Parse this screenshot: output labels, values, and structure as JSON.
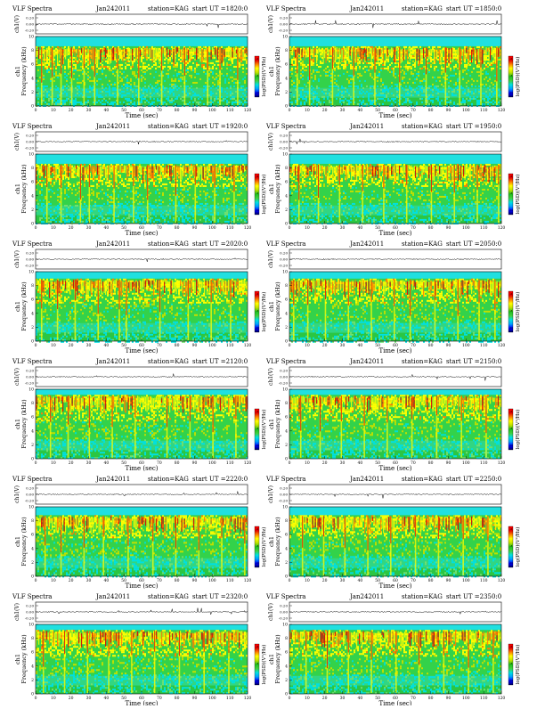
{
  "page": {
    "background": "#ffffff"
  },
  "colorbar": {
    "colors": [
      "#000060",
      "#0000ff",
      "#00a0ff",
      "#00e0e0",
      "#40d040",
      "#20c020",
      "#c0e000",
      "#ffff00",
      "#ff8000",
      "#e00000",
      "#ff0000"
    ]
  },
  "chart_data": [
    {
      "type": "heatmap",
      "title": "VLF Spectra",
      "date": "Jan242011",
      "station": "station=KAG",
      "start": "start  UT =1820:0",
      "amp_label": "ch1(V)",
      "amp_ticks": [
        "0.20",
        "0.00",
        "-0.20"
      ],
      "ylabel": "ch1\nFrequency (kHz)",
      "xlabel": "Time (sec)",
      "xlim": [
        0,
        120
      ],
      "ylim": [
        0,
        10
      ],
      "x_ticks": [
        "0",
        "10",
        "20",
        "30",
        "40",
        "50",
        "60",
        "70",
        "80",
        "90",
        "100",
        "110",
        "120"
      ],
      "y_ticks": [
        "0",
        "2",
        "4",
        "6",
        "8",
        "10"
      ],
      "colorbar_label": "log(PSD)(V²/Hz)",
      "colorbar_ticks": [
        "-6",
        "-8",
        "-10"
      ],
      "upper_band_khz": 8.6,
      "burst_seconds": [
        3,
        9,
        14,
        20,
        27,
        33,
        46,
        58,
        71,
        84,
        97,
        104,
        114
      ]
    },
    {
      "type": "heatmap",
      "title": "VLF Spectra",
      "date": "Jan242011",
      "station": "station=KAG",
      "start": "start  UT =1850:0",
      "amp_label": "ch1(V)",
      "amp_ticks": [
        "0.20",
        "0.00",
        "-0.20"
      ],
      "ylabel": "ch1\nFrequency (kHz)",
      "xlabel": "Time (sec)",
      "xlim": [
        0,
        120
      ],
      "ylim": [
        0,
        10
      ],
      "x_ticks": [
        "0",
        "10",
        "20",
        "30",
        "40",
        "50",
        "60",
        "70",
        "80",
        "90",
        "100",
        "110",
        "120"
      ],
      "y_ticks": [
        "0",
        "2",
        "4",
        "6",
        "8",
        "10"
      ],
      "colorbar_label": "log(PSD)(V²/Hz)",
      "colorbar_ticks": [
        "-6",
        "-8",
        "-10"
      ],
      "upper_band_khz": 8.6,
      "burst_seconds": [
        4,
        11,
        24,
        36,
        48,
        62,
        77,
        88,
        96,
        108,
        117
      ]
    },
    {
      "type": "heatmap",
      "title": "VLF Spectra",
      "date": "Jan242011",
      "station": "station=KAG",
      "start": "start  UT =1920:0",
      "amp_label": "ch1(V)",
      "amp_ticks": [
        "0.20",
        "0.00",
        "-0.20"
      ],
      "ylabel": "ch1\nFrequency (kHz)",
      "xlabel": "Time (sec)",
      "xlim": [
        0,
        120
      ],
      "ylim": [
        0,
        10
      ],
      "x_ticks": [
        "0",
        "10",
        "20",
        "30",
        "40",
        "50",
        "60",
        "70",
        "80",
        "90",
        "100",
        "110",
        "120"
      ],
      "y_ticks": [
        "0",
        "2",
        "4",
        "6",
        "8",
        "10"
      ],
      "colorbar_label": "log(PSD)(V²/Hz)",
      "colorbar_ticks": [
        "-6",
        "-8",
        "-10"
      ],
      "upper_band_khz": 8.6,
      "burst_seconds": [
        6,
        14,
        25,
        30,
        44,
        55,
        63,
        79,
        90,
        101,
        112
      ]
    },
    {
      "type": "heatmap",
      "title": "VLF Spectra",
      "date": "Jan242011",
      "station": "station=KAG",
      "start": "start  UT =1950:0",
      "amp_label": "ch1(V)",
      "amp_ticks": [
        "0.20",
        "0.00",
        "-0.20"
      ],
      "ylabel": "ch1\nFrequency (kHz)",
      "xlabel": "Time (sec)",
      "xlim": [
        0,
        120
      ],
      "ylim": [
        0,
        10
      ],
      "x_ticks": [
        "0",
        "10",
        "20",
        "30",
        "40",
        "50",
        "60",
        "70",
        "80",
        "90",
        "100",
        "110",
        "120"
      ],
      "y_ticks": [
        "0",
        "2",
        "4",
        "6",
        "8",
        "10"
      ],
      "colorbar_label": "log(PSD)(V²/Hz)",
      "colorbar_ticks": [
        "-6",
        "-8",
        "-10"
      ],
      "upper_band_khz": 8.6,
      "burst_seconds": [
        5,
        16,
        28,
        41,
        53,
        66,
        80,
        93,
        106,
        118
      ]
    },
    {
      "type": "heatmap",
      "title": "VLF Spectra",
      "date": "Jan242011",
      "station": "station=KAG",
      "start": "start  UT =2020:0",
      "amp_label": "ch1(V)",
      "amp_ticks": [
        "0.20",
        "0.00",
        "-0.20"
      ],
      "ylabel": "ch1\nFrequency (kHz)",
      "xlabel": "Time (sec)",
      "xlim": [
        0,
        120
      ],
      "ylim": [
        0,
        10
      ],
      "x_ticks": [
        "0",
        "10",
        "20",
        "30",
        "40",
        "50",
        "60",
        "70",
        "80",
        "90",
        "100",
        "110",
        "120"
      ],
      "y_ticks": [
        "0",
        "2",
        "4",
        "6",
        "8",
        "10"
      ],
      "colorbar_label": "log(PSD)(V²/Hz)",
      "colorbar_ticks": [
        "-6",
        "-8",
        "-10"
      ],
      "upper_band_khz": 9.0,
      "burst_seconds": [
        3,
        12,
        22,
        35,
        47,
        51,
        70,
        86,
        99,
        110
      ]
    },
    {
      "type": "heatmap",
      "title": "VLF Spectra",
      "date": "Jan242011",
      "station": "station=KAG",
      "start": "start  UT =2050:0",
      "amp_label": "ch1(V)",
      "amp_ticks": [
        "0.20",
        "0.00",
        "-0.20"
      ],
      "ylabel": "ch1\nFrequency (kHz)",
      "xlabel": "Time (sec)",
      "xlim": [
        0,
        120
      ],
      "ylim": [
        0,
        10
      ],
      "x_ticks": [
        "0",
        "10",
        "20",
        "30",
        "40",
        "50",
        "60",
        "70",
        "80",
        "90",
        "100",
        "110",
        "120"
      ],
      "y_ticks": [
        "0",
        "2",
        "4",
        "6",
        "8",
        "10"
      ],
      "colorbar_label": "log(PSD)(V²/Hz)",
      "colorbar_ticks": [
        "-6",
        "-8",
        "-10"
      ],
      "upper_band_khz": 9.0,
      "burst_seconds": [
        2,
        10,
        20,
        33,
        46,
        59,
        68,
        82,
        95,
        107,
        116
      ]
    },
    {
      "type": "heatmap",
      "title": "VLF Spectra",
      "date": "Jan242011",
      "station": "station=KAG",
      "start": "start  UT =2120:0",
      "amp_label": "ch1(V)",
      "amp_ticks": [
        "0.20",
        "0.00",
        "-0.20"
      ],
      "ylabel": "ch1\nFrequency (kHz)",
      "xlabel": "Time (sec)",
      "xlim": [
        0,
        120
      ],
      "ylim": [
        0,
        10
      ],
      "x_ticks": [
        "0",
        "10",
        "20",
        "30",
        "40",
        "50",
        "60",
        "70",
        "80",
        "90",
        "100",
        "110",
        "120"
      ],
      "y_ticks": [
        "0",
        "2",
        "4",
        "6",
        "8",
        "10"
      ],
      "colorbar_label": "log(PSD)(V²/Hz)",
      "colorbar_ticks": [
        "-6",
        "-8",
        "-10"
      ],
      "upper_band_khz": 9.2,
      "burst_seconds": [
        8,
        18,
        30,
        43,
        56,
        74,
        87,
        100,
        113
      ]
    },
    {
      "type": "heatmap",
      "title": "VLF Spectra",
      "date": "Jan242011",
      "station": "station=KAG",
      "start": "start  UT =2150:0",
      "amp_label": "ch1(V)",
      "amp_ticks": [
        "0.20",
        "0.00",
        "-0.20"
      ],
      "ylabel": "ch1\nFrequency (kHz)",
      "xlabel": "Time (sec)",
      "xlim": [
        0,
        120
      ],
      "ylim": [
        0,
        10
      ],
      "x_ticks": [
        "0",
        "10",
        "20",
        "30",
        "40",
        "50",
        "60",
        "70",
        "80",
        "90",
        "100",
        "110",
        "120"
      ],
      "y_ticks": [
        "0",
        "2",
        "4",
        "6",
        "8",
        "10"
      ],
      "colorbar_label": "log(PSD)(V²/Hz)",
      "colorbar_ticks": [
        "-6",
        "-8",
        "-10"
      ],
      "upper_band_khz": 9.2,
      "burst_seconds": [
        6,
        17,
        29,
        42,
        55,
        69,
        83,
        97,
        111
      ]
    },
    {
      "type": "heatmap",
      "title": "VLF Spectra",
      "date": "Jan242011",
      "station": "station=KAG",
      "start": "start  UT =2220:0",
      "amp_label": "ch1(V)",
      "amp_ticks": [
        "0.20",
        "0.00",
        "-0.20"
      ],
      "ylabel": "ch1\nFrequency (kHz)",
      "xlabel": "Time (sec)",
      "xlim": [
        0,
        120
      ],
      "ylim": [
        0,
        10
      ],
      "x_ticks": [
        "0",
        "10",
        "20",
        "30",
        "40",
        "50",
        "60",
        "70",
        "80",
        "90",
        "100",
        "110",
        "120"
      ],
      "y_ticks": [
        "0",
        "2",
        "4",
        "6",
        "8",
        "10"
      ],
      "colorbar_label": "log(PSD)(V²/Hz)",
      "colorbar_ticks": [
        "-6",
        "-8",
        "-10"
      ],
      "upper_band_khz": 8.8,
      "burst_seconds": [
        5,
        14,
        27,
        38,
        52,
        66,
        79,
        92,
        105,
        118
      ]
    },
    {
      "type": "heatmap",
      "title": "VLF Spectra",
      "date": "Jan242011",
      "station": "station=KAG",
      "start": "start  UT =2250:0",
      "amp_label": "ch1(V)",
      "amp_ticks": [
        "0.20",
        "0.00",
        "-0.20"
      ],
      "ylabel": "ch1\nFrequency (kHz)",
      "xlabel": "Time (sec)",
      "xlim": [
        0,
        120
      ],
      "ylim": [
        0,
        10
      ],
      "x_ticks": [
        "0",
        "10",
        "20",
        "30",
        "40",
        "50",
        "60",
        "70",
        "80",
        "90",
        "100",
        "110",
        "120"
      ],
      "y_ticks": [
        "0",
        "2",
        "4",
        "6",
        "8",
        "10"
      ],
      "colorbar_label": "log(PSD)(V²/Hz)",
      "colorbar_ticks": [
        "-6",
        "-8",
        "-10"
      ],
      "upper_band_khz": 8.8,
      "burst_seconds": [
        7,
        19,
        31,
        44,
        57,
        71,
        84,
        98,
        112
      ]
    },
    {
      "type": "heatmap",
      "title": "VLF Spectra",
      "date": "Jan242011",
      "station": "station=KAG",
      "start": "start  UT =2320:0",
      "amp_label": "ch1(V)",
      "amp_ticks": [
        "0.20",
        "0.00",
        "-0.20"
      ],
      "ylabel": "ch1\nFrequency (kHz)",
      "xlabel": "Time (sec)",
      "xlim": [
        0,
        120
      ],
      "ylim": [
        0,
        10
      ],
      "x_ticks": [
        "0",
        "10",
        "20",
        "30",
        "40",
        "50",
        "60",
        "70",
        "80",
        "90",
        "100",
        "110",
        "120"
      ],
      "y_ticks": [
        "0",
        "2",
        "4",
        "6",
        "8",
        "10"
      ],
      "colorbar_label": "log(PSD)(V²/Hz)",
      "colorbar_ticks": [
        "-6",
        "-8",
        "-10"
      ],
      "upper_band_khz": 9.2,
      "burst_seconds": [
        4,
        16,
        29,
        41,
        54,
        67,
        81,
        95,
        109
      ]
    },
    {
      "type": "heatmap",
      "title": "VLF Spectra",
      "date": "Jan242011",
      "station": "station=KAG",
      "start": "start  UT =2350:0",
      "amp_label": "ch1(V)",
      "amp_ticks": [
        "0.20",
        "0.00",
        "-0.20"
      ],
      "ylabel": "ch1\nFrequency (kHz)",
      "xlabel": "Time (sec)",
      "xlim": [
        0,
        120
      ],
      "ylim": [
        0,
        10
      ],
      "x_ticks": [
        "0",
        "10",
        "20",
        "30",
        "40",
        "50",
        "60",
        "70",
        "80",
        "90",
        "100",
        "110",
        "120"
      ],
      "y_ticks": [
        "0",
        "2",
        "4",
        "6",
        "8",
        "10"
      ],
      "colorbar_label": "log(PSD)(V²/Hz)",
      "colorbar_ticks": [
        "-6",
        "-8",
        "-10"
      ],
      "upper_band_khz": 9.2,
      "burst_seconds": [
        9,
        21,
        33,
        46,
        60,
        73,
        87,
        101,
        115
      ]
    }
  ]
}
